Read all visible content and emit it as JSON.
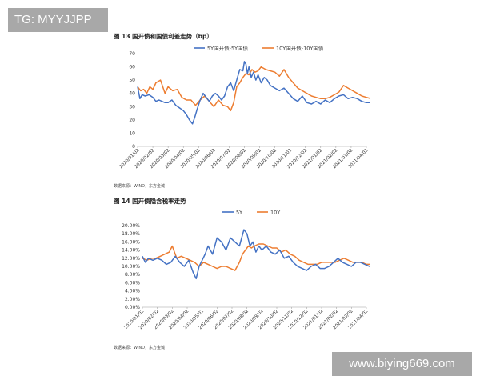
{
  "watermarks": {
    "top_left": "TG: MYYJJPP",
    "bottom_right": "www.biying669.com"
  },
  "chart_data": [
    {
      "type": "line",
      "title": "图 13  国开债和国债利差走势（bp）",
      "source": "数据来源：WIND，东方金诚",
      "ylim": [
        0,
        70
      ],
      "yticks": [
        0,
        10,
        20,
        30,
        40,
        50,
        60,
        70
      ],
      "xtick_labels": [
        "2020/01/02",
        "2020/02/02",
        "2020/03/02",
        "2020/04/02",
        "2020/05/02",
        "2020/06/02",
        "2020/07/02",
        "2020/08/02",
        "2020/09/02",
        "2020/10/02",
        "2020/11/02",
        "2020/12/02",
        "2021/01/02",
        "2021/02/02",
        "2021/03/02",
        "2021/04/02"
      ],
      "grid": false,
      "legend_position": "top",
      "series": [
        {
          "name": "5Y国开债-5Y国债",
          "color": "#4472c4",
          "x": [
            0,
            0.15,
            0.3,
            0.5,
            0.75,
            1,
            1.2,
            1.4,
            1.6,
            1.8,
            2,
            2.25,
            2.5,
            2.75,
            3,
            3.2,
            3.4,
            3.6,
            3.75,
            3.9,
            4.1,
            4.3,
            4.5,
            4.7,
            4.9,
            5.1,
            5.3,
            5.5,
            5.7,
            5.9,
            6.1,
            6.3,
            6.5,
            6.7,
            6.9,
            7,
            7.1,
            7.2,
            7.3,
            7.45,
            7.6,
            7.75,
            7.9,
            8.1,
            8.3,
            8.5,
            8.7,
            9,
            9.3,
            9.6,
            9.9,
            10.2,
            10.5,
            10.8,
            11.1,
            11.4,
            11.7,
            12,
            12.3,
            12.6,
            12.9,
            13.2,
            13.5,
            13.8,
            14.1,
            14.4,
            14.7,
            15,
            15.3,
            15.6,
            15.9
          ],
          "values": [
            45,
            36,
            39,
            38,
            39,
            37,
            34,
            35,
            34,
            33,
            33,
            35,
            31,
            29,
            27,
            24,
            20,
            17,
            22,
            28,
            35,
            40,
            37,
            34,
            38,
            40,
            38,
            35,
            38,
            45,
            48,
            42,
            50,
            58,
            57,
            64,
            62,
            55,
            60,
            52,
            56,
            50,
            54,
            48,
            52,
            50,
            46,
            44,
            42,
            44,
            40,
            36,
            34,
            38,
            33,
            32,
            34,
            32,
            35,
            33,
            36,
            38,
            39,
            36,
            37,
            36,
            34,
            33,
            33,
            32,
            32
          ]
        },
        {
          "name": "10Y国开债-10Y国债",
          "color": "#ed7d31",
          "x": [
            0,
            0.2,
            0.4,
            0.6,
            0.8,
            1,
            1.2,
            1.5,
            1.8,
            2,
            2.3,
            2.6,
            2.9,
            3.2,
            3.5,
            3.8,
            4.1,
            4.4,
            4.7,
            5,
            5.3,
            5.6,
            5.9,
            6.1,
            6.3,
            6.5,
            6.7,
            6.9,
            7.1,
            7.3,
            7.5,
            7.7,
            7.9,
            8.1,
            8.4,
            8.7,
            9,
            9.3,
            9.6,
            9.9,
            10.2,
            10.5,
            10.8,
            11.1,
            11.4,
            11.7,
            12,
            12.3,
            12.6,
            12.9,
            13.2,
            13.5,
            13.8,
            14.1,
            14.4,
            14.7,
            15,
            15.3,
            15.6,
            15.9
          ],
          "values": [
            45,
            42,
            43,
            40,
            45,
            43,
            48,
            50,
            40,
            45,
            42,
            43,
            37,
            35,
            35,
            31,
            35,
            38,
            34,
            30,
            35,
            31,
            30,
            27,
            33,
            45,
            48,
            52,
            55,
            54,
            58,
            56,
            57,
            60,
            58,
            57,
            56,
            53,
            58,
            52,
            48,
            44,
            42,
            40,
            38,
            37,
            36,
            36,
            37,
            39,
            41,
            46,
            44,
            42,
            40,
            38,
            37,
            36,
            36,
            38
          ]
        }
      ]
    },
    {
      "type": "line",
      "title": "图 14  国开债隐含税率走势",
      "source": "数据来源：WIND，东方金诚",
      "ylim": [
        0,
        20
      ],
      "ytick_labels": [
        "0.00%",
        "2.00%",
        "4.00%",
        "6.00%",
        "8.00%",
        "10.00%",
        "12.00%",
        "14.00%",
        "16.00%",
        "18.00%",
        "20.00%"
      ],
      "xtick_labels": [
        "2020/01/02",
        "2020/02/02",
        "2020/03/02",
        "2020/04/02",
        "2020/05/02",
        "2020/06/02",
        "2020/07/02",
        "2020/08/02",
        "2020/09/02",
        "2020/10/02",
        "2020/11/02",
        "2020/12/02",
        "2021/01/02",
        "2021/02/02",
        "2021/03/02",
        "2021/04/02"
      ],
      "grid": false,
      "legend_position": "top",
      "series": [
        {
          "name": "5Y",
          "color": "#4472c4",
          "x": [
            0,
            0.2,
            0.4,
            0.7,
            1,
            1.3,
            1.6,
            1.9,
            2.2,
            2.5,
            2.8,
            3.1,
            3.4,
            3.6,
            3.8,
            4,
            4.2,
            4.4,
            4.7,
            5,
            5.3,
            5.6,
            5.9,
            6.2,
            6.5,
            6.8,
            7,
            7.2,
            7.4,
            7.6,
            7.8,
            8,
            8.3,
            8.6,
            8.9,
            9.2,
            9.5,
            9.8,
            10.1,
            10.4,
            10.7,
            11,
            11.3,
            11.6,
            11.9,
            12.2,
            12.5,
            12.8,
            13.1,
            13.4,
            13.7,
            14,
            14.3,
            14.6,
            14.9,
            15.2,
            15.5,
            15.9
          ],
          "values": [
            12.5,
            11,
            12,
            11.5,
            12,
            11.5,
            10.5,
            11,
            12.5,
            11,
            10,
            11.5,
            8.5,
            7,
            10,
            11.5,
            13,
            15,
            13,
            17,
            16,
            14,
            17,
            16,
            15,
            19,
            18,
            15,
            16,
            13.5,
            15,
            14,
            15,
            13.5,
            13,
            14,
            12,
            12.5,
            11,
            10,
            9.5,
            9,
            10,
            10.5,
            9.5,
            9.5,
            10,
            11,
            12,
            11,
            10.5,
            10,
            11,
            11,
            10.5,
            10,
            10,
            9.8
          ]
        },
        {
          "name": "10Y",
          "color": "#ed7d31",
          "x": [
            0,
            0.3,
            0.6,
            0.9,
            1.2,
            1.5,
            1.8,
            2,
            2.3,
            2.6,
            2.9,
            3.2,
            3.5,
            3.8,
            4.1,
            4.4,
            4.7,
            5,
            5.3,
            5.6,
            5.9,
            6.2,
            6.5,
            6.7,
            6.9,
            7.1,
            7.3,
            7.5,
            7.8,
            8.1,
            8.4,
            8.7,
            9,
            9.3,
            9.6,
            9.9,
            10.2,
            10.5,
            10.8,
            11.1,
            11.4,
            11.7,
            12,
            12.3,
            12.6,
            12.9,
            13.2,
            13.5,
            13.8,
            14.1,
            14.4,
            14.7,
            15,
            15.3,
            15.6,
            15.9
          ],
          "values": [
            12,
            11.5,
            12,
            12,
            12.5,
            13,
            13.5,
            15,
            12,
            12.5,
            12,
            11.5,
            11,
            10,
            11,
            10.5,
            10,
            9.5,
            10,
            10,
            9.5,
            9,
            11,
            13,
            14,
            15,
            14.5,
            15,
            15.5,
            15.5,
            15,
            14.5,
            14.5,
            13.5,
            14,
            13,
            12.5,
            11.5,
            11,
            10.5,
            10.5,
            10.5,
            11,
            11,
            11,
            11,
            11.5,
            12,
            11.5,
            11,
            11,
            11,
            10.5,
            10.5,
            10.5,
            10.5
          ]
        }
      ]
    }
  ]
}
